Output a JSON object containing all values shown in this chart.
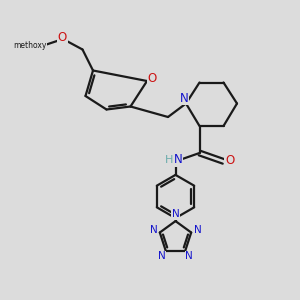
{
  "background_color": "#dcdcdc",
  "bond_color": "#1a1a1a",
  "nitrogen_color": "#1414cc",
  "oxygen_color": "#cc1414",
  "hydrogen_color": "#6aacac",
  "line_width": 1.6,
  "figsize": [
    3.0,
    3.0
  ],
  "dpi": 100,
  "xlim": [
    0,
    10
  ],
  "ylim": [
    0,
    10
  ]
}
